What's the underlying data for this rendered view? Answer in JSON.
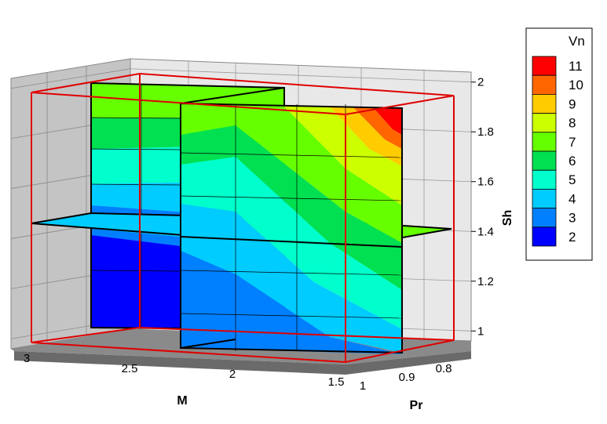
{
  "chart_data": {
    "type": "contour-3d-slices",
    "axes": {
      "x": {
        "label": "M",
        "ticks": [
          "3",
          "2.5",
          "2",
          "1.5"
        ],
        "range": [
          1.4,
          3.1
        ]
      },
      "y": {
        "label": "Pr",
        "ticks": [
          "1",
          "0.9",
          "0.8"
        ],
        "range": [
          0.75,
          1.05
        ]
      },
      "z": {
        "label": "Sh",
        "ticks": [
          "1",
          "1.2",
          "1.4",
          "1.6",
          "1.8",
          "2"
        ],
        "range": [
          0.96,
          2.04
        ]
      }
    },
    "variable": "Vn",
    "legend": {
      "title": "Vn",
      "placement": "right",
      "levels": [
        {
          "label": "11",
          "color": "#ff0000"
        },
        {
          "label": "10",
          "color": "#ff6600"
        },
        {
          "label": "9",
          "color": "#ffcc00"
        },
        {
          "label": "8",
          "color": "#ccff00"
        },
        {
          "label": "7",
          "color": "#66ff00"
        },
        {
          "label": "6",
          "color": "#00e050"
        },
        {
          "label": "5",
          "color": "#00ffcc"
        },
        {
          "label": "4",
          "color": "#00ccff"
        },
        {
          "label": "3",
          "color": "#0080ff"
        },
        {
          "label": "2",
          "color": "#0000ff"
        }
      ]
    },
    "grid": true,
    "background_color": "#c8c8c8",
    "wall_color": "#e6e6e6",
    "bounding_box_color": "#e00000"
  }
}
